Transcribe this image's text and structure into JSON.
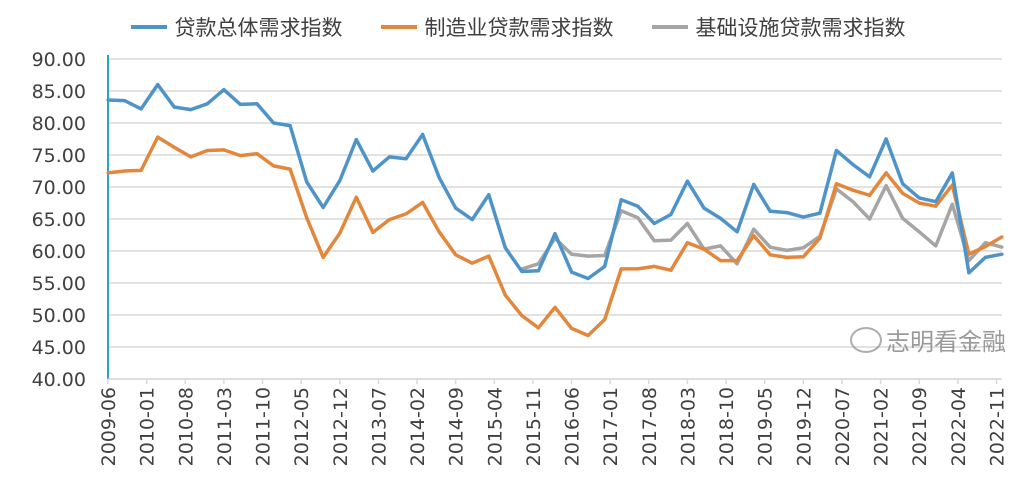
{
  "chart_data": {
    "type": "line",
    "title": "",
    "xlabel": "",
    "ylabel": "",
    "ylim": [
      40,
      90
    ],
    "yticks": [
      "40.00",
      "45.00",
      "50.00",
      "55.00",
      "60.00",
      "65.00",
      "70.00",
      "75.00",
      "80.00",
      "85.00",
      "90.00"
    ],
    "grid": true,
    "legend_position": "top",
    "x_tick_labels": [
      "2009-06",
      "2010-01",
      "2010-08",
      "2011-03",
      "2011-10",
      "2012-05",
      "2012-12",
      "2013-07",
      "2014-02",
      "2014-09",
      "2015-04",
      "2015-11",
      "2016-06",
      "2017-01",
      "2017-08",
      "2018-03",
      "2018-10",
      "2019-05",
      "2019-12",
      "2020-07",
      "2021-02",
      "2021-09",
      "2022-04",
      "2022-11"
    ],
    "x_start": "2009Q2",
    "frequency": "quarterly",
    "series": [
      {
        "name": "贷款总体需求指数",
        "color": "#4f94c9",
        "values": [
          83.6,
          83.5,
          82.2,
          86.0,
          82.5,
          82.1,
          83.0,
          85.2,
          82.9,
          83.0,
          80.0,
          79.6,
          70.8,
          66.8,
          71.0,
          77.4,
          72.5,
          74.7,
          74.4,
          78.2,
          71.5,
          66.7,
          64.9,
          68.8,
          60.5,
          56.8,
          56.9,
          62.7,
          56.7,
          55.7,
          57.6,
          68.0,
          67.0,
          64.3,
          65.7,
          70.9,
          66.7,
          65.1,
          63.0,
          70.4,
          66.2,
          66.0,
          65.3,
          65.9,
          75.7,
          73.5,
          71.6,
          77.5,
          70.5,
          68.3,
          67.7,
          72.2,
          56.6,
          59.0,
          59.5
        ]
      },
      {
        "name": "制造业贷款需求指数",
        "color": "#e3873c",
        "values": [
          72.2,
          72.5,
          72.6,
          77.8,
          76.2,
          74.7,
          75.7,
          75.8,
          74.9,
          75.2,
          73.3,
          72.8,
          65.2,
          59.0,
          62.8,
          68.4,
          62.9,
          64.9,
          65.8,
          67.6,
          63.0,
          59.4,
          58.1,
          59.2,
          53.1,
          49.9,
          48.0,
          51.2,
          47.9,
          46.8,
          49.3,
          57.2,
          57.2,
          57.6,
          57.0,
          61.3,
          60.3,
          58.5,
          58.5,
          62.4,
          59.4,
          59.0,
          59.1,
          62.0,
          70.5,
          69.5,
          68.7,
          72.2,
          69.0,
          67.5,
          67.0,
          70.3,
          59.5,
          60.7,
          62.2
        ]
      },
      {
        "name": "基础设施贷款需求指数",
        "color": "#a5a5a5",
        "values": [
          null,
          null,
          null,
          null,
          null,
          null,
          null,
          null,
          null,
          null,
          null,
          null,
          null,
          null,
          null,
          null,
          null,
          null,
          null,
          null,
          null,
          null,
          null,
          null,
          null,
          57.2,
          58.0,
          62.0,
          59.5,
          59.2,
          59.3,
          66.3,
          65.2,
          61.6,
          61.7,
          64.3,
          60.3,
          60.8,
          58.0,
          63.4,
          60.6,
          60.1,
          60.5,
          62.3,
          69.7,
          67.7,
          65.0,
          70.2,
          65.1,
          63.0,
          60.8,
          67.3,
          58.5,
          61.3,
          60.6
        ]
      }
    ]
  },
  "watermark": "志明看金融"
}
